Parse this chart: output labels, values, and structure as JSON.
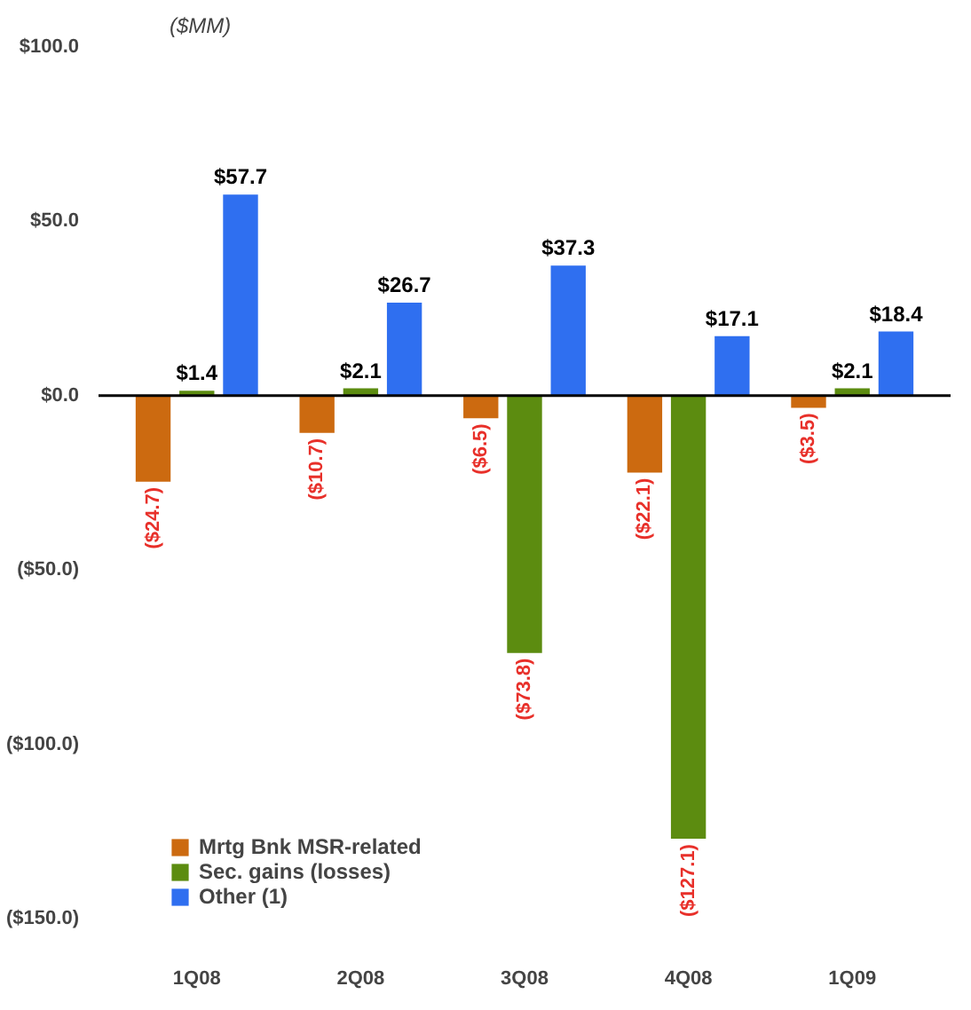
{
  "chart_data": {
    "type": "bar",
    "ylabel": "($MM)",
    "categories": [
      "1Q08",
      "2Q08",
      "3Q08",
      "4Q08",
      "1Q09"
    ],
    "series": [
      {
        "name": "Mrtg Bnk MSR-related",
        "color": "#cc6a10",
        "values": [
          -24.7,
          -10.7,
          -6.5,
          -22.1,
          -3.5
        ],
        "value_labels": [
          "($24.7)",
          "($10.7)",
          "($6.5)",
          "($22.1)",
          "($3.5)"
        ]
      },
      {
        "name": "Sec. gains (losses)",
        "color": "#5c8c10",
        "values": [
          1.4,
          2.1,
          -73.8,
          -127.1,
          2.1
        ],
        "value_labels": [
          "$1.4",
          "$2.1",
          "($73.8)",
          "($127.1)",
          "$2.1"
        ]
      },
      {
        "name": "Other (1)",
        "color": "#2f6ff0",
        "values": [
          57.7,
          26.7,
          37.3,
          17.1,
          18.4
        ],
        "value_labels": [
          "$57.7",
          "$26.7",
          "$37.3",
          "$17.1",
          "$18.4"
        ]
      }
    ],
    "ylim": [
      -150,
      100
    ],
    "yticks": [
      {
        "value": 100,
        "label": "$100.0"
      },
      {
        "value": 50,
        "label": "$50.0"
      },
      {
        "value": 0,
        "label": "$0.0"
      },
      {
        "value": -50,
        "label": "($50.0)"
      },
      {
        "value": -100,
        "label": "($100.0)"
      },
      {
        "value": -150,
        "label": "($150.0)"
      }
    ],
    "ref_lines": [
      {
        "axis": "y",
        "value": 0,
        "color": "#000000"
      }
    ],
    "grid": false,
    "legend": "bottom left"
  }
}
